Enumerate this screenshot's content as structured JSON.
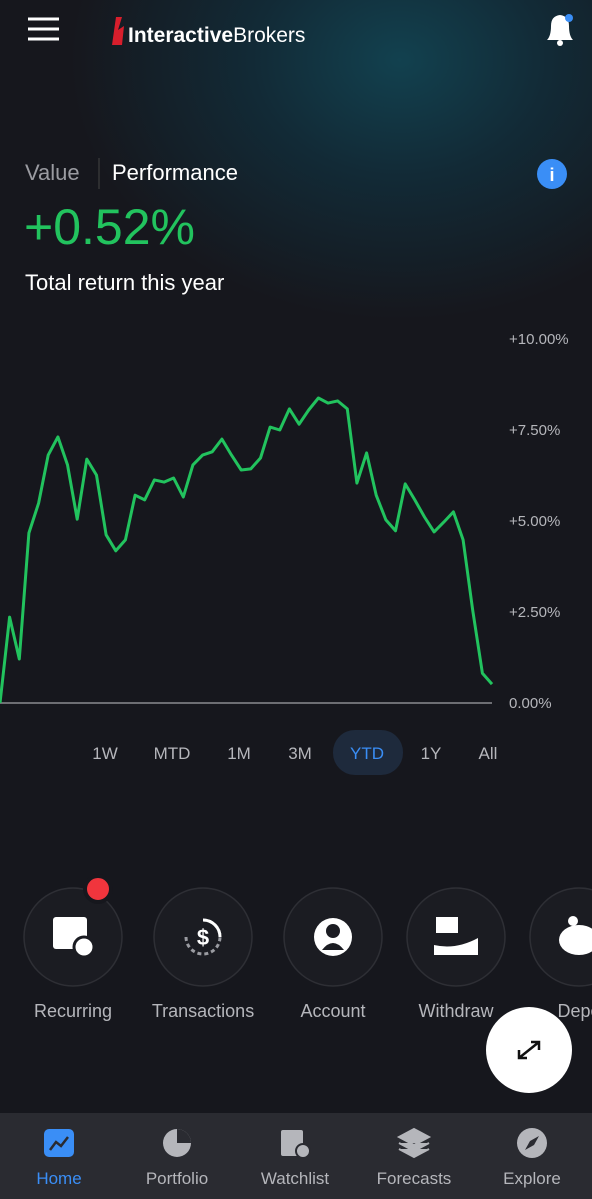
{
  "header": {
    "brand_bold": "Interactive",
    "brand": "Brokers"
  },
  "tabs": {
    "value": "Value",
    "performance": "Performance"
  },
  "performance": {
    "return": "+0.52%",
    "caption": "Total return this year"
  },
  "chart_data": {
    "type": "line",
    "color": "#22c35e",
    "values": [
      0,
      2.36,
      1.21,
      4.67,
      5.49,
      6.81,
      7.31,
      6.54,
      5.05,
      6.7,
      6.26,
      4.62,
      4.18,
      4.48,
      5.71,
      5.58,
      6.13,
      6.07,
      6.18,
      5.66,
      6.54,
      6.81,
      6.9,
      7.25,
      6.81,
      6.4,
      6.43,
      6.73,
      7.58,
      7.5,
      8.08,
      7.66,
      8.05,
      8.38,
      8.24,
      8.3,
      8.08,
      6.04,
      6.87,
      5.71,
      5.03,
      4.73,
      6.02,
      5.58,
      5.11,
      4.7,
      4.97,
      5.25,
      4.48,
      2.55,
      0.82,
      0.52
    ],
    "ylim": [
      0,
      10
    ],
    "yticks": [
      {
        "value": 0,
        "label": "0.00%"
      },
      {
        "value": 2.5,
        "label": "+2.50%"
      },
      {
        "value": 5,
        "label": "+5.00%"
      },
      {
        "value": 7.5,
        "label": "+7.50%"
      },
      {
        "value": 10,
        "label": "+10.00%"
      }
    ]
  },
  "ranges": [
    "1W",
    "MTD",
    "1M",
    "3M",
    "YTD",
    "1Y",
    "All"
  ],
  "actions": [
    "Recurring",
    "Transactions",
    "Account",
    "Withdraw",
    "Depo"
  ],
  "nav": [
    "Home",
    "Portfolio",
    "Watchlist",
    "Forecasts",
    "Explore"
  ]
}
